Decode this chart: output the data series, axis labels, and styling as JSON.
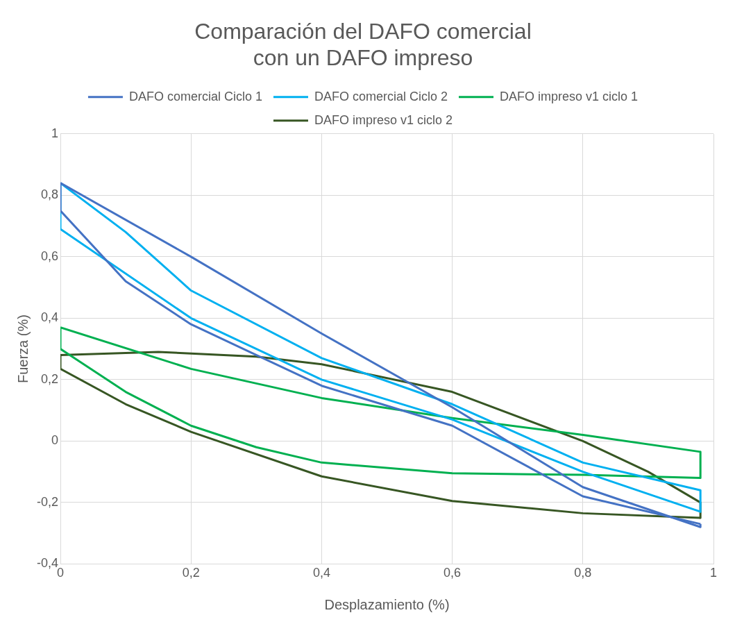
{
  "chart_data": {
    "type": "line",
    "title": "Comparación del DAFO comercial\ncon un DAFO impreso",
    "xlabel": "Desplazamiento (%)",
    "ylabel": "Fuerza (%)",
    "xlim": [
      0,
      1
    ],
    "ylim": [
      -0.4,
      1
    ],
    "xticks": [
      0,
      {
        "value": 0.2,
        "label": "0,2"
      },
      {
        "value": 0.4,
        "label": "0,4"
      },
      {
        "value": 0.6,
        "label": "0,6"
      },
      {
        "value": 0.8,
        "label": "0,8"
      },
      1
    ],
    "yticks": [
      {
        "value": -0.4,
        "label": "-0,4"
      },
      {
        "value": -0.2,
        "label": "-0,2"
      },
      0,
      {
        "value": 0.2,
        "label": "0,2"
      },
      {
        "value": 0.4,
        "label": "0,4"
      },
      {
        "value": 0.6,
        "label": "0,6"
      },
      {
        "value": 0.8,
        "label": "0,8"
      },
      1
    ],
    "grid": true,
    "legend": "top",
    "marker": "none",
    "line_style": "solid",
    "series": [
      {
        "name": "DAFO comercial Ciclo 1",
        "color": "#4472c4",
        "x": [
          0,
          0.2,
          0.4,
          0.6,
          0.8,
          0.98,
          0.98
        ],
        "values": [
          0.84,
          0.6,
          0.35,
          0.11,
          -0.15,
          -0.28,
          -0.27
        ]
      },
      {
        "color": "#4472c4",
        "x": [
          0.98,
          0.8,
          0.6,
          0.4,
          0.2,
          0.1,
          0,
          0
        ],
        "values": [
          -0.27,
          -0.18,
          0.05,
          0.18,
          0.38,
          0.52,
          0.75,
          0.84
        ]
      },
      {
        "name": "DAFO comercial Ciclo 2",
        "color": "#00b0f0",
        "x": [
          0,
          0.1,
          0.2,
          0.4,
          0.6,
          0.8,
          0.98,
          0.98
        ],
        "values": [
          0.84,
          0.68,
          0.49,
          0.27,
          0.12,
          -0.07,
          -0.16,
          -0.23
        ]
      },
      {
        "color": "#00b0f0",
        "x": [
          0.98,
          0.8,
          0.6,
          0.4,
          0.2,
          0,
          0
        ],
        "values": [
          -0.23,
          -0.1,
          0.07,
          0.2,
          0.4,
          0.69,
          0.84
        ]
      },
      {
        "name": "DAFO impreso v1 ciclo 1",
        "color": "#00b050",
        "x": [
          0,
          0.2,
          0.4,
          0.6,
          0.8,
          0.98,
          0.98
        ],
        "values": [
          0.37,
          0.235,
          0.14,
          0.075,
          0.02,
          -0.035,
          -0.12
        ]
      },
      {
        "color": "#00b050",
        "x": [
          0.98,
          0.8,
          0.6,
          0.4,
          0.3,
          0.2,
          0.1,
          0,
          0
        ],
        "values": [
          -0.12,
          -0.11,
          -0.105,
          -0.07,
          -0.02,
          0.05,
          0.16,
          0.3,
          0.37
        ]
      },
      {
        "name": "DAFO impreso v1 ciclo 2",
        "color": "#375623",
        "x": [
          0,
          0.15,
          0.3,
          0.4,
          0.6,
          0.8,
          0.9,
          0.98,
          0.98
        ],
        "values": [
          0.28,
          0.29,
          0.275,
          0.25,
          0.16,
          0.0,
          -0.1,
          -0.2,
          -0.25
        ]
      },
      {
        "color": "#375623",
        "x": [
          0.98,
          0.8,
          0.6,
          0.4,
          0.2,
          0.1,
          0,
          0
        ],
        "values": [
          -0.25,
          -0.235,
          -0.195,
          -0.115,
          0.03,
          0.12,
          0.235,
          0.28
        ]
      }
    ]
  }
}
